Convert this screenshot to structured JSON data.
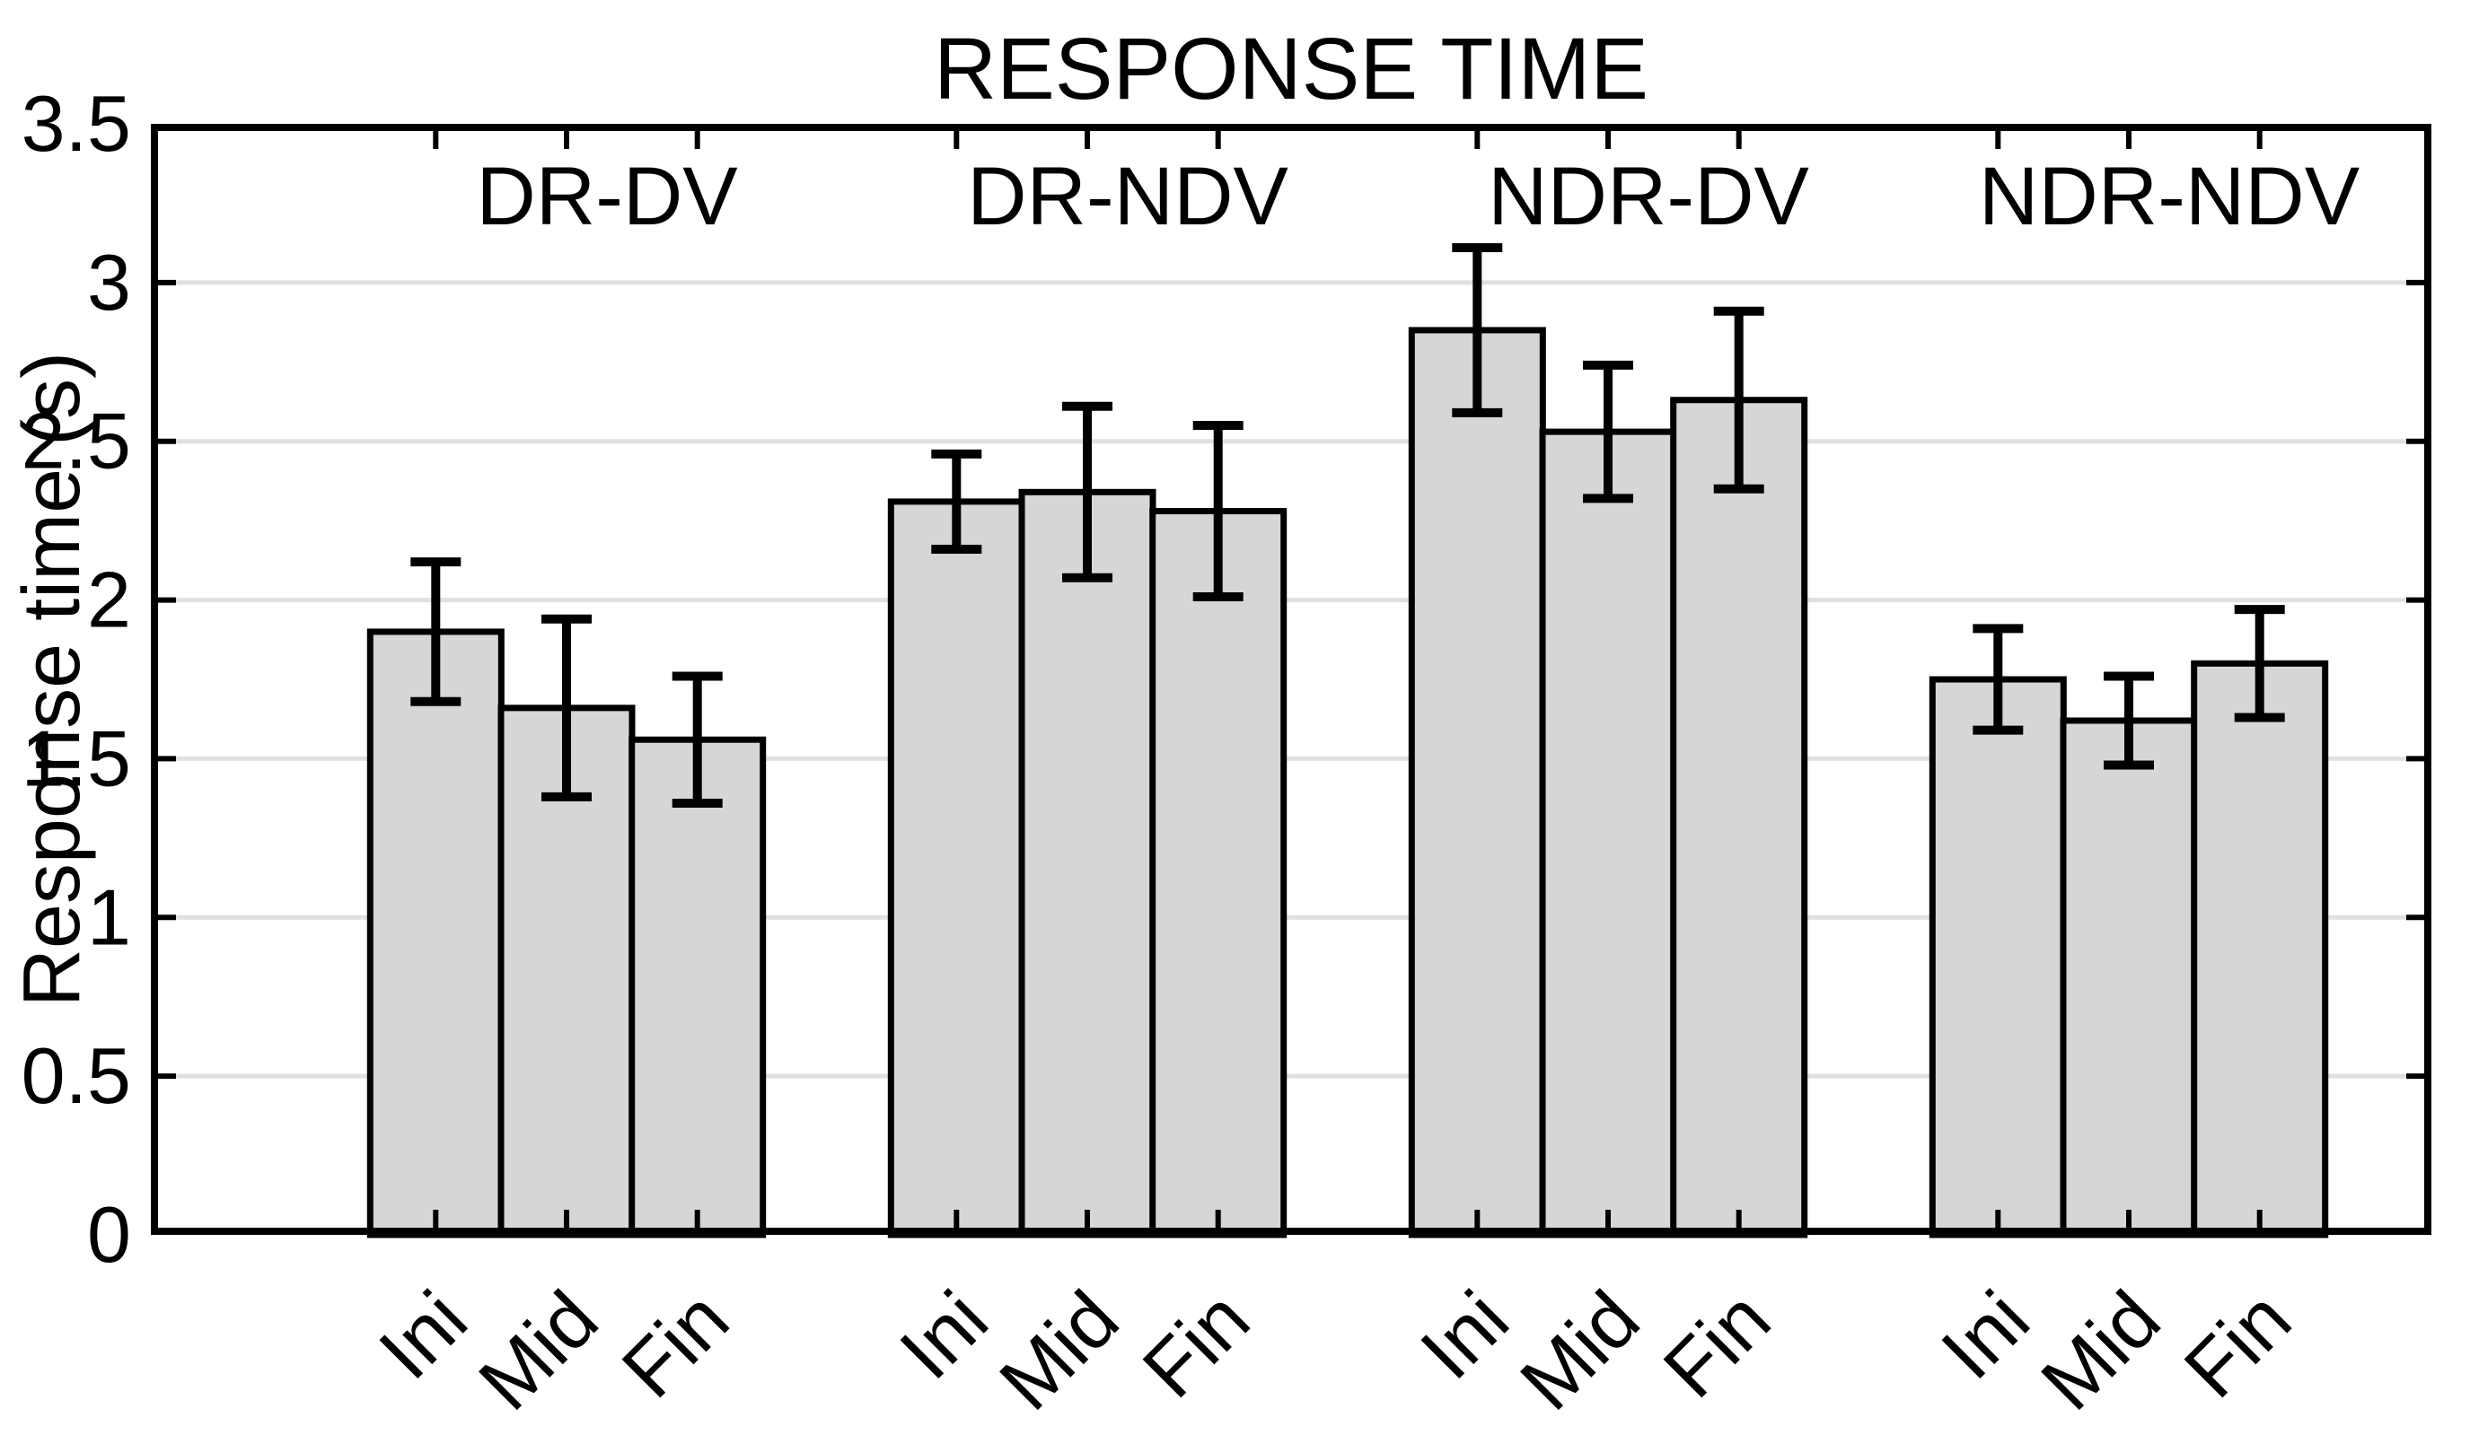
{
  "figure": {
    "title": "RESPONSE TIME",
    "y_axis_label": "Response time (s)"
  },
  "chart_data": {
    "type": "bar",
    "title": "RESPONSE TIME",
    "xlabel": "",
    "ylabel": "Response time (s)",
    "ylim": [
      0,
      3.5
    ],
    "yticks": [
      0,
      0.5,
      1,
      1.5,
      2,
      2.5,
      3,
      3.5
    ],
    "ytick_labels": [
      "0",
      "0.5",
      "1",
      "1.5",
      "2",
      "2.5",
      "3",
      "3.5"
    ],
    "grid": "horizontal",
    "legend": "none",
    "has_error_bars": true,
    "bar_fill_color": "#d6d6d6",
    "bar_edge_color": "#000000",
    "error_bar_color": "#000000",
    "gridline_color": "#e0e0e0",
    "categories": [
      "Ini",
      "Mid",
      "Fin"
    ],
    "groups": [
      {
        "label": "DR-DV",
        "values": [
          1.9,
          1.66,
          1.56
        ],
        "errors": [
          0.22,
          0.28,
          0.2
        ]
      },
      {
        "label": "DR-NDV",
        "values": [
          2.31,
          2.34,
          2.28
        ],
        "errors": [
          0.15,
          0.27,
          0.27
        ]
      },
      {
        "label": "NDR-DV",
        "values": [
          2.85,
          2.53,
          2.63
        ],
        "errors": [
          0.26,
          0.21,
          0.28
        ]
      },
      {
        "label": "NDR-NDV",
        "values": [
          1.75,
          1.62,
          1.8
        ],
        "errors": [
          0.16,
          0.14,
          0.17
        ]
      }
    ]
  }
}
